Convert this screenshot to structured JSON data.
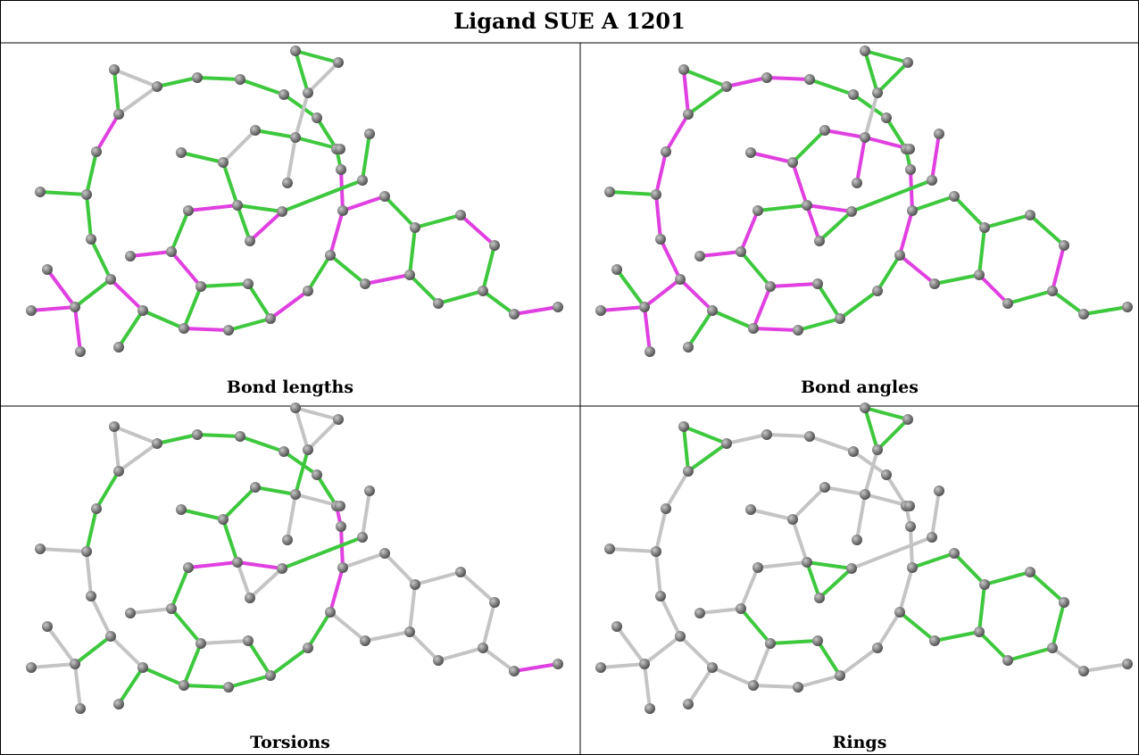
{
  "header": {
    "title": "Ligand SUE A 1201"
  },
  "panels": [
    {
      "caption": "Bond lengths"
    },
    {
      "caption": "Bond angles"
    },
    {
      "caption": "Torsions"
    },
    {
      "caption": "Rings"
    }
  ]
}
